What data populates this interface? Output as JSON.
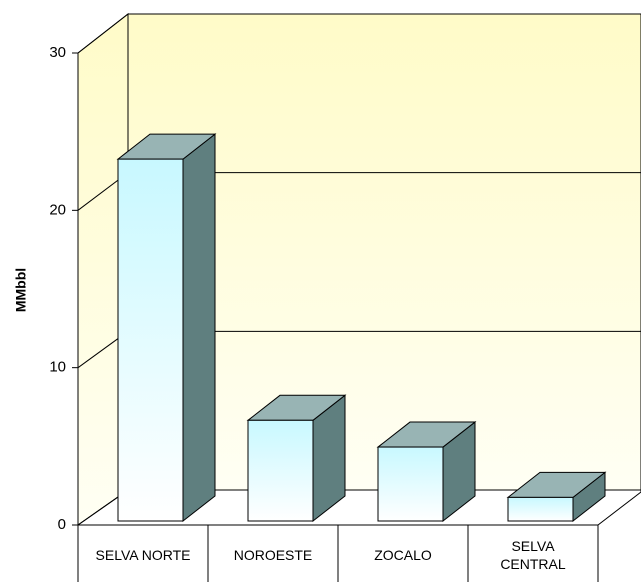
{
  "chart_data": {
    "type": "bar3d",
    "y_label": "MMbbl",
    "categories": [
      "SELVA NORTE",
      "NOROESTE",
      "ZOCALO",
      "SELVA CENTRAL"
    ],
    "values": [
      23,
      6.4,
      4.7,
      1.5
    ],
    "ylim": [
      0,
      30
    ],
    "yticks": [
      0,
      10,
      20,
      30
    ],
    "grid": true
  }
}
